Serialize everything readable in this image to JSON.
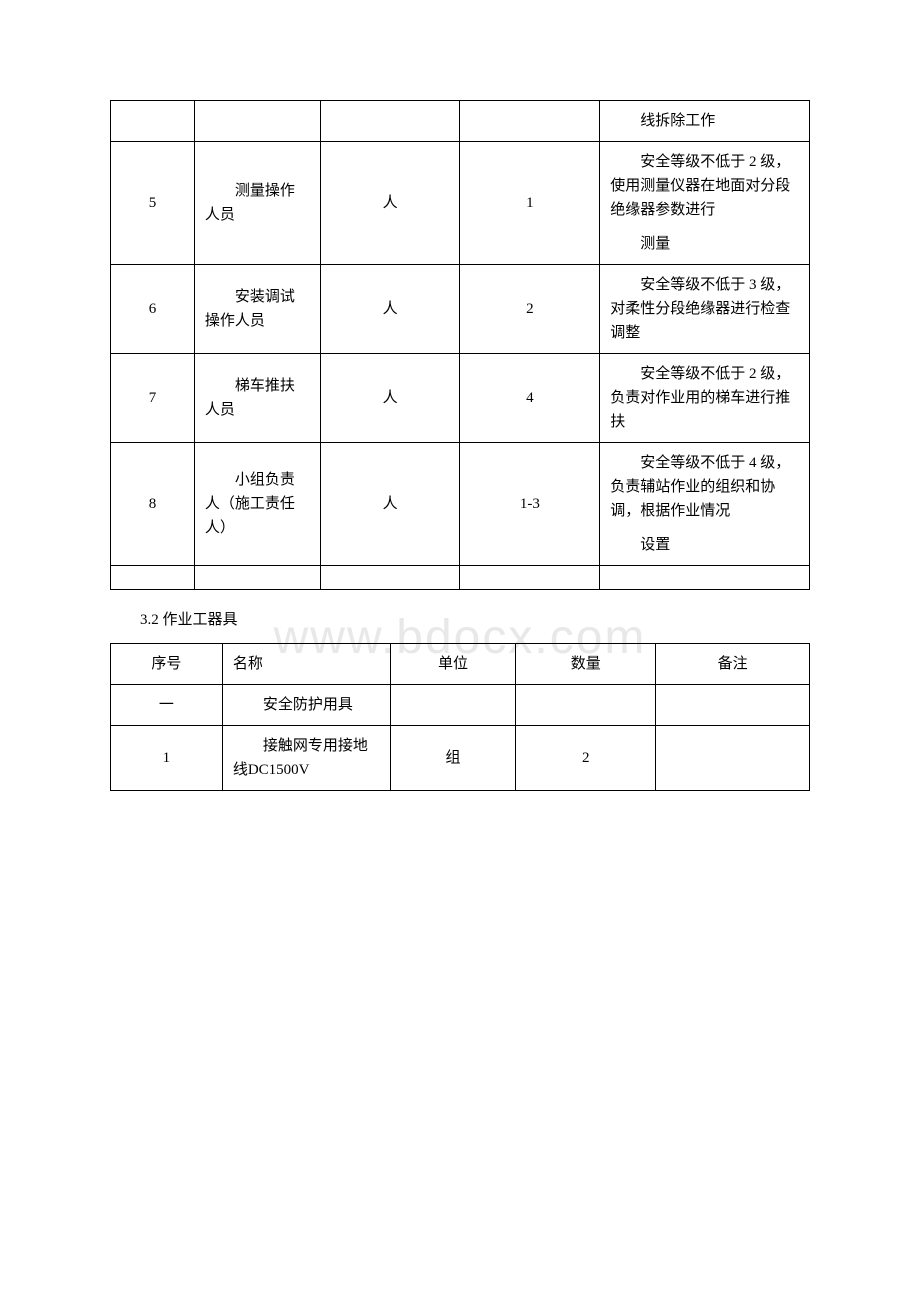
{
  "watermark": "www.bdocx.com",
  "table1": {
    "rows": [
      {
        "seq": "",
        "role": "",
        "unit": "",
        "qty": "",
        "note_main": "线拆除工作",
        "note_sub": ""
      },
      {
        "seq": "5",
        "role": "测量操作人员",
        "unit": "人",
        "qty": "1",
        "note_main": "安全等级不低于 2 级，使用测量仪器在地面对分段绝缘器参数进行",
        "note_sub": "测量"
      },
      {
        "seq": "6",
        "role": "安装调试操作人员",
        "unit": "人",
        "qty": "2",
        "note_main": "安全等级不低于 3 级，对柔性分段绝缘器进行检查调整",
        "note_sub": ""
      },
      {
        "seq": "7",
        "role": "梯车推扶人员",
        "unit": "人",
        "qty": "4",
        "note_main": "安全等级不低于 2 级，负责对作业用的梯车进行推扶",
        "note_sub": ""
      },
      {
        "seq": "8",
        "role": "小组负责人（施工责任人）",
        "unit": "人",
        "qty": "1-3",
        "note_main": "安全等级不低于 4 级，负责辅站作业的组织和协调，根据作业情况",
        "note_sub": "设置"
      }
    ]
  },
  "section_title": "3.2 作业工器具",
  "table2": {
    "headers": {
      "h1": "序号",
      "h2": "名称",
      "h3": "单位",
      "h4": "数量",
      "h5": "备注"
    },
    "rows": [
      {
        "seq": "一",
        "name": "安全防护用具",
        "unit": "",
        "qty": "",
        "note": ""
      },
      {
        "seq": "1",
        "name": "接触网专用接地线DC1500V",
        "unit": "组",
        "qty": "2",
        "note": ""
      }
    ]
  }
}
